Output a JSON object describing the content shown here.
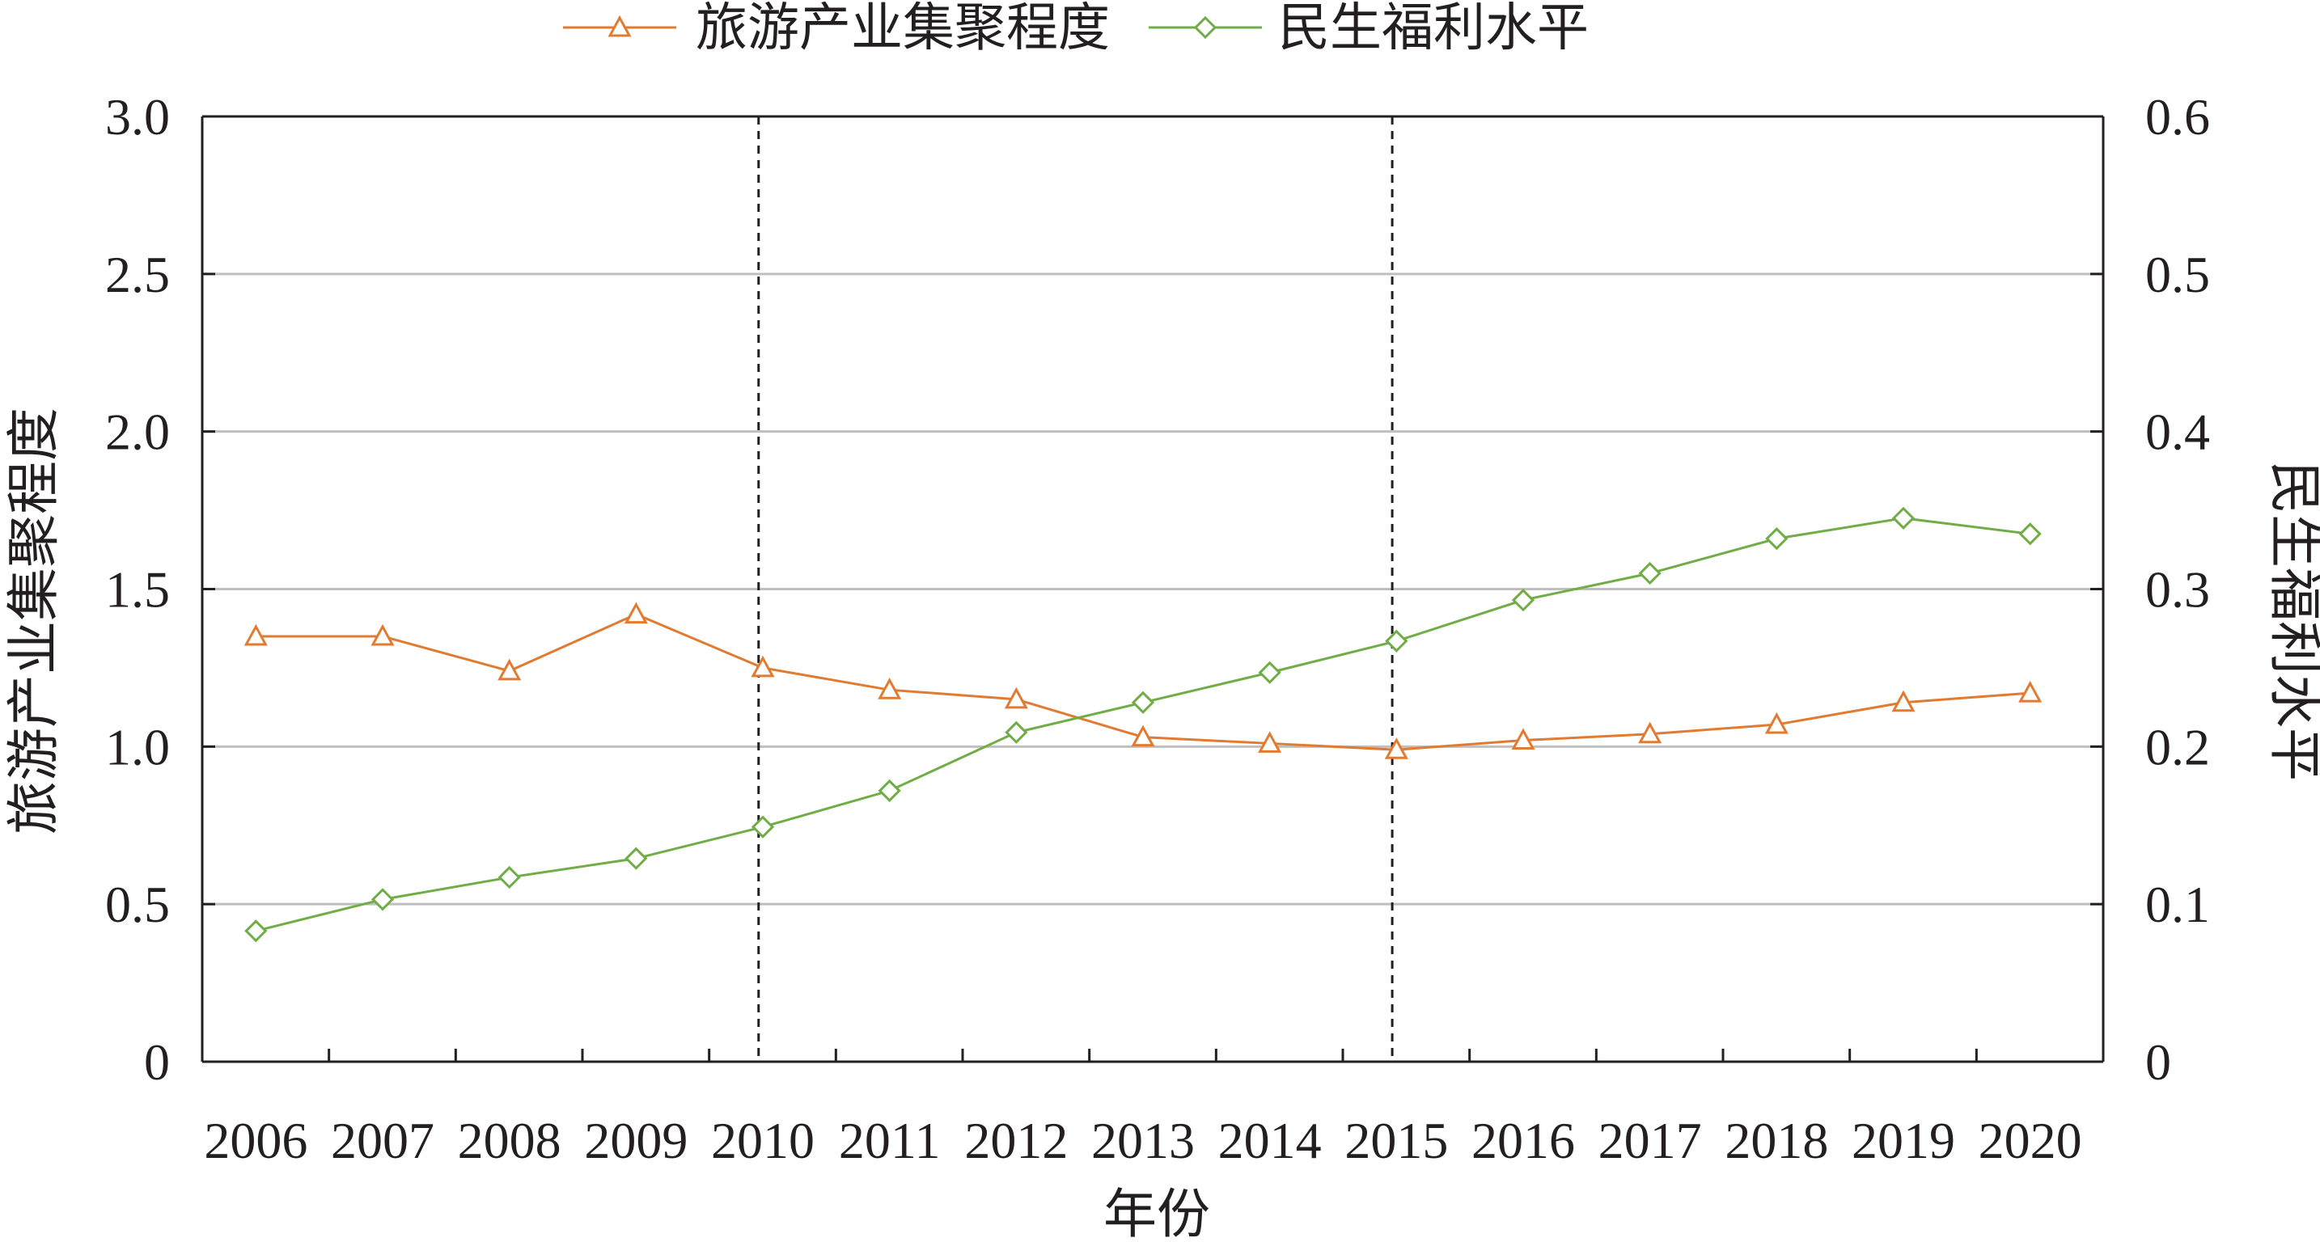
{
  "chart_data": {
    "type": "line",
    "title": "",
    "categories": [
      "2006",
      "2007",
      "2008",
      "2009",
      "2010",
      "2011",
      "2012",
      "2013",
      "2014",
      "2015",
      "2016",
      "2017",
      "2018",
      "2019",
      "2020"
    ],
    "xlabel": "年份",
    "ylabel_left": "旅游产业集聚程度",
    "ylabel_right": "民生福利水平",
    "ylim_left": [
      0,
      3.0
    ],
    "ylim_right": [
      0,
      0.6
    ],
    "yticks_left": [
      "0",
      "0.5",
      "1.0",
      "1.5",
      "2.0",
      "2.5",
      "3.0"
    ],
    "yticks_right": [
      "0",
      "0.1",
      "0.2",
      "0.3",
      "0.4",
      "0.5",
      "0.6"
    ],
    "grid": true,
    "legend_position": "top",
    "reference_lines_after": [
      "2010",
      "2015"
    ],
    "series": [
      {
        "name": "旅游产业集聚程度",
        "axis": "left",
        "marker": "triangle",
        "color": "#e07b31",
        "values": [
          1.35,
          1.35,
          1.24,
          1.42,
          1.25,
          1.18,
          1.15,
          1.03,
          1.01,
          0.99,
          1.02,
          1.04,
          1.07,
          1.14,
          1.17
        ]
      },
      {
        "name": "民生福利水平",
        "axis": "right",
        "marker": "diamond",
        "color": "#70ad47",
        "values": [
          0.083,
          0.103,
          0.117,
          0.129,
          0.149,
          0.172,
          0.209,
          0.228,
          0.247,
          0.267,
          0.293,
          0.31,
          0.332,
          0.345,
          0.335
        ]
      }
    ]
  }
}
